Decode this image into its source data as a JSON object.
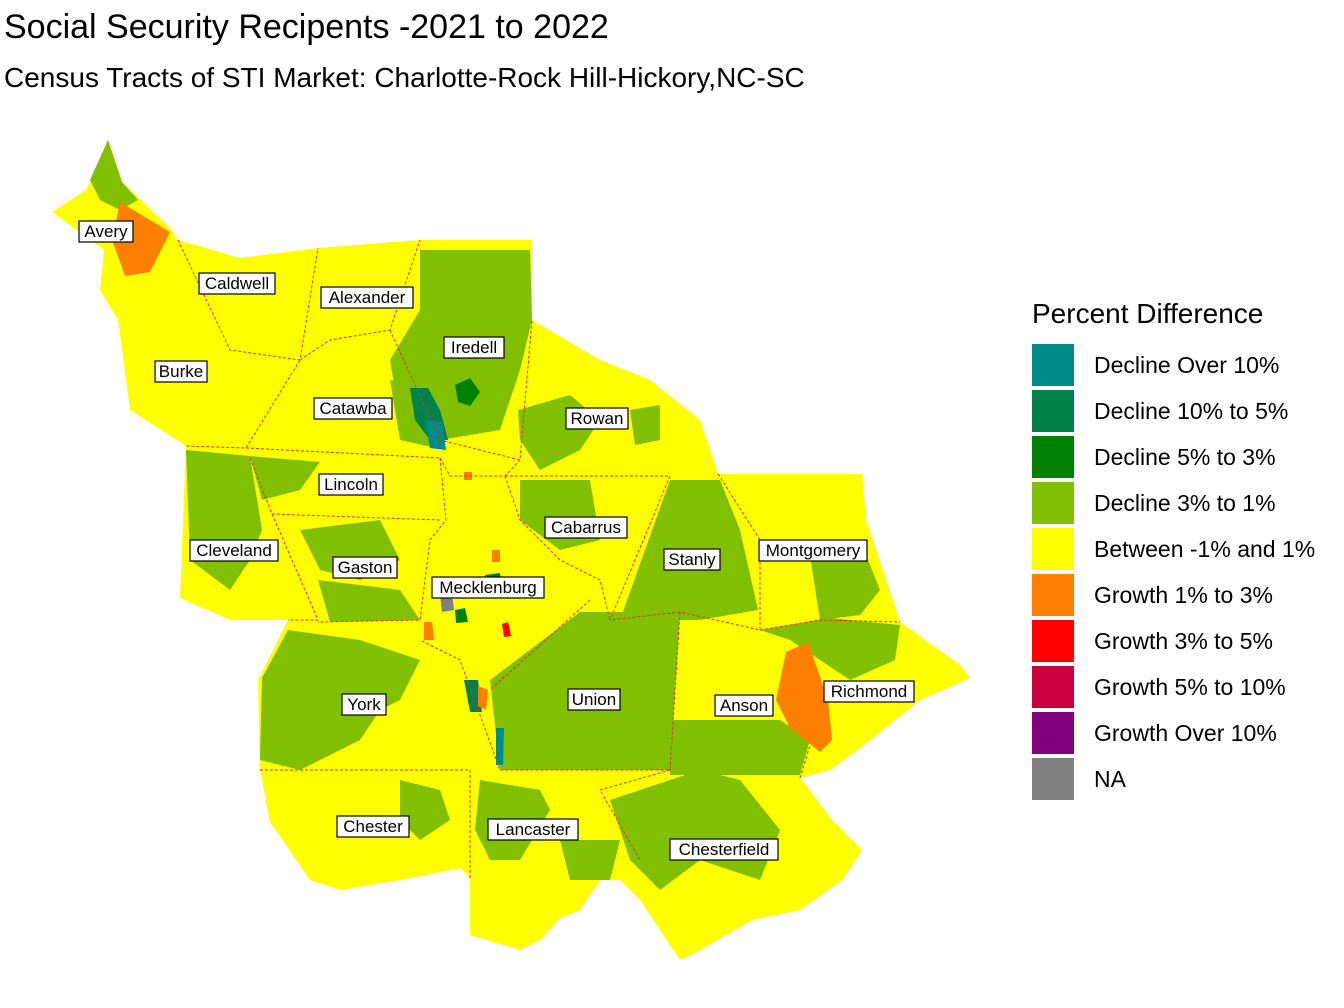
{
  "title": "Social Security Recipents -2021 to 2022",
  "subtitle": "Census Tracts of STI Market: Charlotte-Rock Hill-Hickory,NC-SC",
  "legend": {
    "title": "Percent Difference",
    "items": [
      {
        "label": "Decline Over 10%",
        "color": "#008B8B"
      },
      {
        "label": "Decline 10% to 5%",
        "color": "#00804A"
      },
      {
        "label": "Decline 5% to 3%",
        "color": "#008000"
      },
      {
        "label": "Decline 3% to 1%",
        "color": "#80C000"
      },
      {
        "label": "Between -1% and 1%",
        "color": "#FFFF00"
      },
      {
        "label": "Growth 1% to 3%",
        "color": "#FF8000"
      },
      {
        "label": "Growth 3% to 5%",
        "color": "#FF0000"
      },
      {
        "label": "Growth 5% to 10%",
        "color": "#C80040"
      },
      {
        "label": "Growth Over 10%",
        "color": "#800080"
      },
      {
        "label": "NA",
        "color": "#808080"
      }
    ]
  },
  "counties": {
    "avery": "Avery",
    "caldwell": "Caldwell",
    "alexander": "Alexander",
    "iredell": "Iredell",
    "burke": "Burke",
    "catawba": "Catawba",
    "rowan": "Rowan",
    "lincoln": "Lincoln",
    "cabarrus": "Cabarrus",
    "cleveland": "Cleveland",
    "gaston": "Gaston",
    "stanly": "Stanly",
    "montgomery": "Montgomery",
    "mecklenburg": "Mecklenburg",
    "york": "York",
    "union": "Union",
    "anson": "Anson",
    "richmond": "Richmond",
    "chester": "Chester",
    "lancaster": "Lancaster",
    "chesterfield": "Chesterfield"
  }
}
